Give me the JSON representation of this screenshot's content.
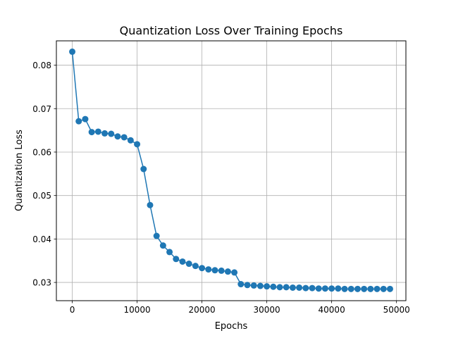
{
  "chart_data": {
    "type": "line",
    "title": "Quantization Loss Over Training Epochs",
    "xlabel": "Epochs",
    "ylabel": "Quantization Loss",
    "xlim": [
      -2450,
      51450
    ],
    "ylim": [
      0.0258,
      0.0856
    ],
    "xticks": [
      0,
      10000,
      20000,
      30000,
      40000,
      50000
    ],
    "xtick_labels": [
      "0",
      "10000",
      "20000",
      "30000",
      "40000",
      "50000"
    ],
    "yticks": [
      0.03,
      0.04,
      0.05,
      0.06,
      0.07,
      0.08
    ],
    "ytick_labels": [
      "0.03",
      "0.04",
      "0.05",
      "0.06",
      "0.07",
      "0.08"
    ],
    "grid": true,
    "color": "#1f77b4",
    "series": [
      {
        "marker": "circle",
        "x": [
          0,
          1000,
          2000,
          3000,
          4000,
          5000,
          6000,
          7000,
          8000,
          9000,
          10000,
          11000,
          12000,
          13000,
          14000,
          15000,
          16000,
          17000,
          18000,
          19000,
          20000,
          21000,
          22000,
          23000,
          24000,
          25000,
          26000,
          27000,
          28000,
          29000,
          30000,
          31000,
          32000,
          33000,
          34000,
          35000,
          36000,
          37000,
          38000,
          39000,
          40000,
          41000,
          42000,
          43000,
          44000,
          45000,
          46000,
          47000,
          48000,
          49000
        ],
        "y": [
          0.0831,
          0.0671,
          0.0676,
          0.0646,
          0.0647,
          0.0643,
          0.0642,
          0.0636,
          0.0634,
          0.0627,
          0.0618,
          0.0561,
          0.0478,
          0.0407,
          0.0385,
          0.037,
          0.0354,
          0.0348,
          0.0343,
          0.0338,
          0.0333,
          0.033,
          0.0328,
          0.0327,
          0.0325,
          0.0323,
          0.0296,
          0.0294,
          0.0293,
          0.0292,
          0.0291,
          0.029,
          0.0289,
          0.0289,
          0.0288,
          0.0288,
          0.0287,
          0.0287,
          0.0286,
          0.0286,
          0.0286,
          0.0286,
          0.0285,
          0.0285,
          0.0285,
          0.0285,
          0.0285,
          0.0285,
          0.0285,
          0.0285
        ]
      }
    ]
  }
}
